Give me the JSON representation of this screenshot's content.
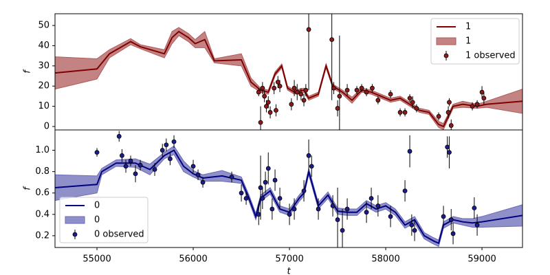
{
  "chart_data": [
    {
      "type": "line",
      "ylabel": "f",
      "xlim": [
        54564,
        59421
      ],
      "ylim": [
        -1.7,
        55.8
      ],
      "yticks": [
        0,
        10,
        20,
        30,
        40,
        50
      ],
      "legend_loc": "upper right",
      "series": [
        {
          "name": "1",
          "color": "#800000",
          "x": [
            54564,
            55000,
            55130,
            55350,
            55450,
            55700,
            55780,
            55850,
            55950,
            56020,
            56120,
            56220,
            56500,
            56600,
            56700,
            56780,
            56850,
            56920,
            56980,
            57050,
            57150,
            57200,
            57300,
            57380,
            57450,
            57550,
            57650,
            57750,
            57850,
            57950,
            58050,
            58150,
            58250,
            58350,
            58450,
            58550,
            58600,
            58700,
            58800,
            58950,
            59050,
            59421
          ],
          "values": [
            26.5,
            28.5,
            36,
            42,
            39.5,
            36,
            44,
            47,
            44,
            41,
            43,
            32.5,
            33,
            22,
            18,
            17,
            26,
            30,
            19,
            17,
            18,
            14,
            16,
            30,
            20,
            17,
            13,
            18,
            17,
            15,
            13,
            14,
            11,
            8,
            7,
            1,
            0,
            10,
            11,
            10,
            11,
            12.5
          ]
        }
      ],
      "band": {
        "name": "1",
        "color": "#b05a5a",
        "upper": [
          34.5,
          33.5,
          38,
          43.5,
          40.5,
          38,
          47,
          49,
          46,
          43,
          47,
          33.5,
          36,
          24,
          19,
          18,
          27,
          31,
          20,
          18,
          19,
          15,
          17,
          31,
          21,
          18,
          14.5,
          19,
          18,
          16,
          14,
          15,
          12,
          9,
          8,
          2.5,
          1.5,
          11,
          12.5,
          11,
          12.5,
          18.5
        ],
        "lower": [
          18.5,
          23.5,
          34,
          40.5,
          38.5,
          34,
          41,
          45,
          42,
          39,
          39,
          31.5,
          30,
          20,
          17,
          16,
          25,
          29,
          18,
          16,
          17,
          13,
          15,
          29,
          19,
          16,
          11.5,
          17,
          16,
          14,
          12,
          13,
          10,
          7,
          6,
          -0.5,
          -1.5,
          9,
          9.5,
          9,
          9.5,
          6.5
        ]
      },
      "observed": {
        "name": "1 observed",
        "color": "#8b1a1a",
        "x": [
          56680,
          56700,
          56720,
          56740,
          56760,
          56780,
          56800,
          56840,
          56860,
          56880,
          56900,
          57020,
          57050,
          57080,
          57120,
          57150,
          57170,
          57200,
          57440,
          57460,
          57500,
          57520,
          57600,
          57700,
          57750,
          57800,
          57860,
          57920,
          58050,
          58150,
          58200,
          58250,
          58280,
          58320,
          58550,
          58650,
          58660,
          58680,
          58900,
          58950,
          59000,
          59020
        ],
        "values": [
          17,
          2,
          19,
          15,
          10,
          12,
          7,
          19,
          8,
          22,
          20,
          11,
          19,
          17,
          16,
          13,
          18,
          48,
          43,
          19,
          9,
          15,
          18,
          18,
          19,
          17,
          19,
          13,
          16,
          7,
          7,
          14,
          12,
          9,
          5,
          7,
          12,
          0.5,
          10,
          11,
          17,
          14
        ],
        "errors": [
          2,
          8,
          3,
          3,
          3,
          3,
          3,
          3,
          3,
          3,
          3,
          3,
          4,
          4,
          3,
          3,
          3,
          30,
          30,
          3,
          4,
          30,
          3,
          2,
          2,
          2,
          2,
          2,
          2,
          2,
          2,
          2,
          3,
          2,
          2,
          3,
          2,
          3,
          2,
          2,
          3,
          3
        ]
      }
    },
    {
      "type": "line",
      "ylabel": "f",
      "xlabel": "t",
      "xlim": [
        54564,
        59421
      ],
      "ylim": [
        0.09,
        1.19
      ],
      "yticks": [
        0.2,
        0.4,
        0.6,
        0.8,
        {
          "value": 1,
          "label": "1.0"
        }
      ],
      "xticks": [
        55000,
        56000,
        57000,
        58000,
        59000
      ],
      "legend_loc": "lower left",
      "series": [
        {
          "name": "0",
          "color": "#000080",
          "x": [
            54564,
            55000,
            55050,
            55200,
            55400,
            55550,
            55700,
            55800,
            55900,
            56000,
            56100,
            56300,
            56500,
            56580,
            56650,
            56700,
            56800,
            56900,
            57000,
            57100,
            57150,
            57200,
            57300,
            57400,
            57500,
            57600,
            57700,
            57800,
            57900,
            58000,
            58100,
            58200,
            58300,
            58400,
            58500,
            58550,
            58600,
            58700,
            58800,
            58900,
            59000,
            59421
          ],
          "values": [
            0.65,
            0.68,
            0.8,
            0.88,
            0.88,
            0.82,
            0.95,
            1,
            0.85,
            0.78,
            0.74,
            0.76,
            0.72,
            0.55,
            0.38,
            0.55,
            0.62,
            0.45,
            0.42,
            0.55,
            0.6,
            0.8,
            0.48,
            0.58,
            0.43,
            0.42,
            0.42,
            0.5,
            0.45,
            0.48,
            0.42,
            0.3,
            0.35,
            0.2,
            0.15,
            0.13,
            0.3,
            0.35,
            0.33,
            0.32,
            0.33,
            0.39
          ]
        }
      ],
      "band": {
        "name": "0",
        "color": "#6a6ab8",
        "upper": [
          0.77,
          0.76,
          0.83,
          0.91,
          0.92,
          0.87,
          0.98,
          1.04,
          0.9,
          0.81,
          0.77,
          0.81,
          0.75,
          0.58,
          0.41,
          0.58,
          0.65,
          0.48,
          0.45,
          0.58,
          0.63,
          0.83,
          0.51,
          0.61,
          0.46,
          0.45,
          0.45,
          0.53,
          0.48,
          0.51,
          0.45,
          0.33,
          0.38,
          0.23,
          0.18,
          0.16,
          0.33,
          0.38,
          0.36,
          0.36,
          0.38,
          0.49
        ],
        "lower": [
          0.53,
          0.6,
          0.77,
          0.85,
          0.84,
          0.77,
          0.92,
          0.96,
          0.8,
          0.75,
          0.71,
          0.71,
          0.69,
          0.52,
          0.35,
          0.52,
          0.59,
          0.42,
          0.39,
          0.52,
          0.57,
          0.77,
          0.45,
          0.55,
          0.4,
          0.39,
          0.39,
          0.47,
          0.42,
          0.45,
          0.39,
          0.27,
          0.32,
          0.17,
          0.12,
          0.1,
          0.27,
          0.32,
          0.3,
          0.28,
          0.28,
          0.29
        ]
      },
      "observed": {
        "name": "0 observed",
        "color": "#1c1c8c",
        "x": [
          55000,
          55230,
          55260,
          55300,
          55350,
          55400,
          55450,
          55600,
          55680,
          55720,
          55760,
          55800,
          56000,
          56050,
          56100,
          56400,
          56500,
          56550,
          56680,
          56700,
          56720,
          56750,
          56780,
          56820,
          56850,
          56900,
          57000,
          57050,
          57150,
          57200,
          57230,
          57300,
          57450,
          57500,
          57550,
          57600,
          57800,
          57850,
          57920,
          58050,
          58200,
          58250,
          58270,
          58300,
          58600,
          58640,
          58660,
          58680,
          58700,
          58920,
          58950
        ],
        "values": [
          0.98,
          1.13,
          0.95,
          0.85,
          0.9,
          0.78,
          0.86,
          0.82,
          1,
          1.05,
          0.92,
          1.08,
          0.85,
          0.77,
          0.7,
          0.75,
          0.6,
          0.55,
          0.4,
          0.65,
          0.55,
          0.7,
          0.83,
          0.45,
          0.72,
          0.55,
          0.4,
          0.45,
          0.62,
          0.95,
          0.85,
          0.45,
          0.48,
          0.35,
          0.25,
          0.45,
          0.42,
          0.55,
          0.48,
          0.38,
          0.62,
          0.99,
          0.3,
          0.25,
          0.38,
          1.03,
          0.98,
          0.35,
          0.22,
          0.46,
          0.3
        ],
        "errors": [
          0.04,
          0.05,
          0.06,
          0.06,
          0.05,
          0.08,
          0.05,
          0.06,
          0.06,
          0.06,
          0.06,
          0.06,
          0.06,
          0.05,
          0.05,
          0.05,
          0.08,
          0.06,
          0.1,
          0.3,
          0.1,
          0.1,
          0.15,
          0.1,
          0.1,
          0.1,
          0.1,
          0.1,
          0.1,
          0.15,
          0.1,
          0.1,
          0.1,
          0.3,
          0.2,
          0.1,
          0.1,
          0.1,
          0.1,
          0.1,
          0.1,
          0.15,
          0.1,
          0.1,
          0.1,
          0.1,
          0.15,
          0.1,
          0.1,
          0.1,
          0.1
        ]
      }
    }
  ]
}
